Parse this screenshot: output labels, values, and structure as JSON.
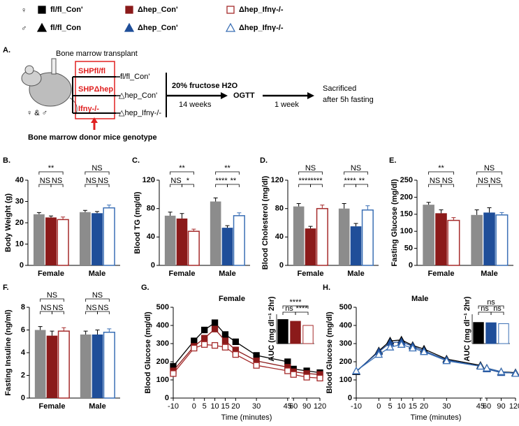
{
  "legend": [
    {
      "sex": "♀",
      "items": [
        {
          "label": "fl/fl_Con'",
          "color": "#000000",
          "marker": "square",
          "open": false
        },
        {
          "label": "Δhep_Con'",
          "color": "#8b1a1a",
          "marker": "square",
          "open": false
        },
        {
          "label": "Δhep_Ifnγ-/-",
          "color": "#a52a2a",
          "marker": "square",
          "open": true
        }
      ]
    },
    {
      "sex": "♂",
      "items": [
        {
          "label": "fl/fl_Con",
          "color": "#000000",
          "marker": "triangle",
          "open": false
        },
        {
          "label": "Δhep_Con'",
          "color": "#1f4e99",
          "marker": "triangle",
          "open": false
        },
        {
          "label": "Δhep_Ifnγ-/-",
          "color": "#3a6fb5",
          "marker": "triangle",
          "open": true
        }
      ]
    }
  ],
  "diagram": {
    "label": "A.",
    "transplant": "Bone marrow transplant",
    "donors": [
      "SHPfl/fl",
      "SHPΔhep",
      "Ifnγ-/-"
    ],
    "groups": [
      "fl/fl_Con'",
      "△hep_Con'",
      "△hep_Ifnγ-/-"
    ],
    "treatment": "20% fructose H2O",
    "duration": "14  weeks",
    "test": "OGTT",
    "interval": "1 week",
    "endpoint": [
      "Sacrificed",
      "after 5h fasting"
    ],
    "genotype": "Bone marrow donor mice genotype",
    "sexes": "♀ & ♂"
  },
  "chart_data": [
    {
      "type": "bar",
      "panel": "B.",
      "ylabel": "Body Weight (g)",
      "categories": [
        "Female",
        "Male"
      ],
      "ylim": [
        0,
        40
      ],
      "yticks": [
        0,
        10,
        20,
        30,
        40
      ],
      "series": [
        {
          "colors": [
            "#8c8c8c",
            "#8c8c8c"
          ],
          "open": false,
          "values": [
            24,
            25
          ],
          "errors": [
            0.8,
            0.8
          ]
        },
        {
          "colors": [
            "#8b1a1a",
            "#1f4e99"
          ],
          "open": false,
          "values": [
            22.5,
            24.5
          ],
          "errors": [
            0.7,
            0.8
          ]
        },
        {
          "colors": [
            "#a52a2a",
            "#3a6fb5"
          ],
          "open": true,
          "values": [
            21.5,
            27
          ],
          "errors": [
            1.2,
            1.3
          ]
        }
      ],
      "brackets": [
        {
          "text": "**",
          "group": 0,
          "from": 0,
          "to": 2
        },
        {
          "text": "NS",
          "group": 0,
          "from": 0,
          "to": 1
        },
        {
          "text": "NS",
          "group": 0,
          "from": 1,
          "to": 2
        },
        {
          "text": "NS",
          "group": 1,
          "from": 0,
          "to": 2
        },
        {
          "text": "NS",
          "group": 1,
          "from": 0,
          "to": 1
        },
        {
          "text": "NS",
          "group": 1,
          "from": 1,
          "to": 2
        }
      ]
    },
    {
      "type": "bar",
      "panel": "C.",
      "ylabel": "Blood TG (mg/dl)",
      "categories": [
        "Female",
        "Male"
      ],
      "ylim": [
        0,
        120
      ],
      "yticks": [
        0,
        40,
        80,
        120
      ],
      "series": [
        {
          "colors": [
            "#8c8c8c",
            "#8c8c8c"
          ],
          "open": false,
          "values": [
            70,
            90
          ],
          "errors": [
            5,
            5
          ]
        },
        {
          "colors": [
            "#8b1a1a",
            "#1f4e99"
          ],
          "open": false,
          "values": [
            66,
            53
          ],
          "errors": [
            7,
            3
          ]
        },
        {
          "colors": [
            "#a52a2a",
            "#3a6fb5"
          ],
          "open": true,
          "values": [
            48,
            70
          ],
          "errors": [
            3,
            4
          ]
        }
      ],
      "brackets": [
        {
          "text": "**",
          "group": 0,
          "from": 0,
          "to": 2
        },
        {
          "text": "NS",
          "group": 0,
          "from": 0,
          "to": 1
        },
        {
          "text": "*",
          "group": 0,
          "from": 1,
          "to": 2
        },
        {
          "text": "**",
          "group": 1,
          "from": 0,
          "to": 2
        },
        {
          "text": "****",
          "group": 1,
          "from": 0,
          "to": 1
        },
        {
          "text": "**",
          "group": 1,
          "from": 1,
          "to": 2
        }
      ]
    },
    {
      "type": "bar",
      "panel": "D.",
      "ylabel": "Blood Cholesterol (mg/dl)",
      "categories": [
        "Female",
        "Male"
      ],
      "ylim": [
        0,
        120
      ],
      "yticks": [
        0,
        40,
        80,
        120
      ],
      "series": [
        {
          "colors": [
            "#8c8c8c",
            "#8c8c8c"
          ],
          "open": false,
          "values": [
            83,
            80
          ],
          "errors": [
            4,
            7
          ]
        },
        {
          "colors": [
            "#8b1a1a",
            "#1f4e99"
          ],
          "open": false,
          "values": [
            52,
            55
          ],
          "errors": [
            3,
            4
          ]
        },
        {
          "colors": [
            "#a52a2a",
            "#3a6fb5"
          ],
          "open": true,
          "values": [
            80,
            78
          ],
          "errors": [
            5,
            6
          ]
        }
      ],
      "brackets": [
        {
          "text": "NS",
          "group": 0,
          "from": 0,
          "to": 2
        },
        {
          "text": "****",
          "group": 0,
          "from": 0,
          "to": 1
        },
        {
          "text": "****",
          "group": 0,
          "from": 1,
          "to": 2
        },
        {
          "text": "NS",
          "group": 1,
          "from": 0,
          "to": 2
        },
        {
          "text": "****",
          "group": 1,
          "from": 0,
          "to": 1
        },
        {
          "text": "**",
          "group": 1,
          "from": 1,
          "to": 2
        }
      ]
    },
    {
      "type": "bar",
      "panel": "E.",
      "ylabel": "Fasting Glucose (mg/dl)",
      "categories": [
        "Female",
        "Male"
      ],
      "ylim": [
        0,
        250
      ],
      "yticks": [
        0,
        50,
        100,
        150,
        200,
        250
      ],
      "series": [
        {
          "colors": [
            "#8c8c8c",
            "#8c8c8c"
          ],
          "open": false,
          "values": [
            178,
            148
          ],
          "errors": [
            7,
            15
          ]
        },
        {
          "colors": [
            "#8b1a1a",
            "#1f4e99"
          ],
          "open": false,
          "values": [
            153,
            155
          ],
          "errors": [
            10,
            14
          ]
        },
        {
          "colors": [
            "#a52a2a",
            "#3a6fb5"
          ],
          "open": true,
          "values": [
            132,
            148
          ],
          "errors": [
            8,
            7
          ]
        }
      ],
      "brackets": [
        {
          "text": "**",
          "group": 0,
          "from": 0,
          "to": 2
        },
        {
          "text": "NS",
          "group": 0,
          "from": 0,
          "to": 1
        },
        {
          "text": "NS",
          "group": 0,
          "from": 1,
          "to": 2
        },
        {
          "text": "NS",
          "group": 1,
          "from": 0,
          "to": 2
        },
        {
          "text": "NS",
          "group": 1,
          "from": 0,
          "to": 1
        },
        {
          "text": "NS",
          "group": 1,
          "from": 1,
          "to": 2
        }
      ]
    },
    {
      "type": "bar",
      "panel": "F.",
      "ylabel": "Fasting Insuline (ng/ml)",
      "categories": [
        "Female",
        "Male"
      ],
      "ylim": [
        0,
        8
      ],
      "yticks": [
        0,
        2,
        4,
        6,
        8
      ],
      "series": [
        {
          "colors": [
            "#8c8c8c",
            "#8c8c8c"
          ],
          "open": false,
          "values": [
            6.0,
            5.6
          ],
          "errors": [
            0.3,
            0.3
          ]
        },
        {
          "colors": [
            "#8b1a1a",
            "#1f4e99"
          ],
          "open": false,
          "values": [
            5.5,
            5.6
          ],
          "errors": [
            0.4,
            0.4
          ]
        },
        {
          "colors": [
            "#a52a2a",
            "#3a6fb5"
          ],
          "open": true,
          "values": [
            5.9,
            5.8
          ],
          "errors": [
            0.3,
            0.3
          ]
        }
      ],
      "brackets": [
        {
          "text": "NS",
          "group": 0,
          "from": 0,
          "to": 2
        },
        {
          "text": "NS",
          "group": 0,
          "from": 0,
          "to": 1
        },
        {
          "text": "NS",
          "group": 0,
          "from": 1,
          "to": 2
        },
        {
          "text": "NS",
          "group": 1,
          "from": 0,
          "to": 2
        },
        {
          "text": "NS",
          "group": 1,
          "from": 0,
          "to": 1
        },
        {
          "text": "NS",
          "group": 1,
          "from": 1,
          "to": 2
        }
      ]
    },
    {
      "type": "line",
      "panel": "G.",
      "title": "Female",
      "xlabel": "Time (minutes)",
      "ylabel": "Blood Glucose (mg/dl)",
      "x": [
        -10,
        0,
        5,
        10,
        15,
        20,
        30,
        45,
        60,
        90,
        120
      ],
      "xlim": [
        -10,
        120
      ],
      "xbreak": [
        45,
        60
      ],
      "xticks": [
        -10,
        0,
        5,
        10,
        15,
        20,
        30,
        45,
        60,
        90,
        120
      ],
      "ylim": [
        0,
        500
      ],
      "yticks": [
        0,
        100,
        200,
        300,
        400,
        500
      ],
      "series": [
        {
          "color": "#000000",
          "marker": "square",
          "open": false,
          "values": [
            175,
            315,
            375,
            415,
            350,
            310,
            235,
            200,
            160,
            150,
            140
          ]
        },
        {
          "color": "#8b1a1a",
          "marker": "square",
          "open": false,
          "values": [
            150,
            285,
            330,
            380,
            315,
            265,
            205,
            170,
            145,
            135,
            130
          ]
        },
        {
          "color": "#a52a2a",
          "marker": "square",
          "open": true,
          "values": [
            135,
            275,
            295,
            290,
            280,
            240,
            180,
            150,
            130,
            115,
            110
          ]
        }
      ],
      "inset": {
        "ylabel": "AUC (mg dl⁻¹ 2hr)",
        "ylim": [
          0,
          50000
        ],
        "values": [
          41000,
          38000,
          31000
        ],
        "colors": [
          "#000000",
          "#8b1a1a",
          "#a52a2a"
        ],
        "open": [
          false,
          false,
          true
        ],
        "brackets": [
          {
            "text": "****",
            "from": 0,
            "to": 2
          },
          {
            "text": "ns",
            "from": 0,
            "to": 1
          },
          {
            "text": "****",
            "from": 1,
            "to": 2
          }
        ]
      }
    },
    {
      "type": "line",
      "panel": "H.",
      "title": "Male",
      "xlabel": "Time (minutes)",
      "ylabel": "Blood Glucose (mg/dl)",
      "x": [
        -10,
        0,
        5,
        10,
        15,
        20,
        30,
        45,
        60,
        90,
        120
      ],
      "xlim": [
        -10,
        120
      ],
      "xbreak": [
        45,
        60
      ],
      "xticks": [
        -10,
        0,
        5,
        10,
        15,
        20,
        30,
        45,
        60,
        90,
        120
      ],
      "ylim": [
        0,
        500
      ],
      "yticks": [
        0,
        100,
        200,
        300,
        400,
        500
      ],
      "series": [
        {
          "color": "#000000",
          "marker": "triangle",
          "open": false,
          "values": [
            145,
            260,
            315,
            320,
            290,
            270,
            215,
            180,
            165,
            145,
            140
          ]
        },
        {
          "color": "#1f4e99",
          "marker": "triangle",
          "open": false,
          "values": [
            148,
            255,
            305,
            310,
            285,
            260,
            210,
            175,
            160,
            140,
            138
          ]
        },
        {
          "color": "#3a6fb5",
          "marker": "triangle",
          "open": true,
          "values": [
            150,
            240,
            280,
            295,
            275,
            255,
            205,
            175,
            165,
            145,
            135
          ]
        }
      ],
      "inset": {
        "ylabel": "AUC (mg dl⁻¹ 2hr)",
        "ylim": [
          0,
          50000
        ],
        "values": [
          36000,
          35500,
          34000
        ],
        "colors": [
          "#000000",
          "#1f4e99",
          "#3a6fb5"
        ],
        "open": [
          false,
          false,
          true
        ],
        "brackets": [
          {
            "text": "ns",
            "from": 0,
            "to": 2
          },
          {
            "text": "ns",
            "from": 0,
            "to": 1
          },
          {
            "text": "ns",
            "from": 1,
            "to": 2
          }
        ]
      }
    }
  ]
}
